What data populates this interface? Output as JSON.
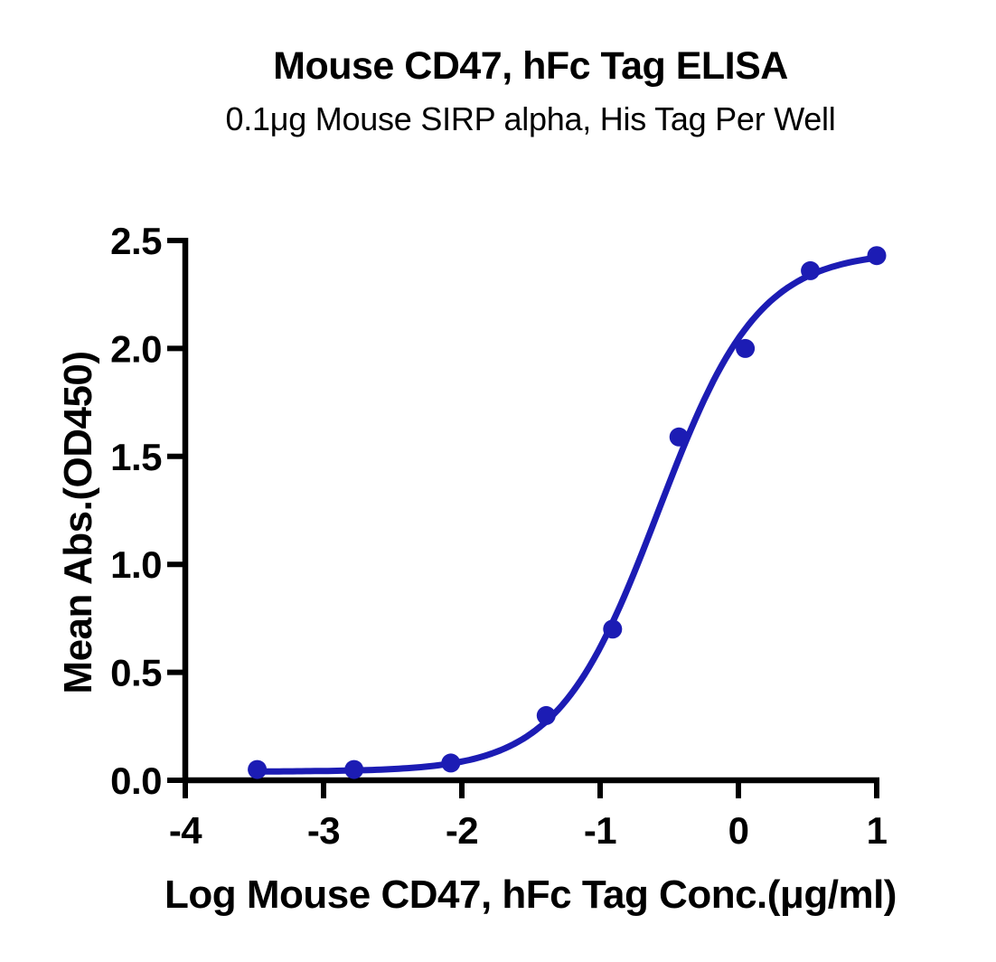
{
  "title": "Mouse CD47, hFc Tag ELISA",
  "subtitle": "0.1μg Mouse SIRP alpha, His Tag Per Well",
  "chart_data": {
    "type": "scatter",
    "title": "Mouse CD47, hFc Tag ELISA",
    "subtitle": "0.1μg Mouse SIRP alpha, His Tag Per Well",
    "xlabel": "Log Mouse CD47, hFc Tag Conc.(μg/ml)",
    "ylabel": "Mean Abs.(OD450)",
    "x": [
      -3.48,
      -2.78,
      -2.08,
      -1.39,
      -0.91,
      -0.43,
      0.05,
      0.52,
      1.0
    ],
    "y": [
      0.05,
      0.05,
      0.08,
      0.3,
      0.7,
      1.59,
      2.0,
      2.36,
      2.43
    ],
    "x_ticks": [
      -4,
      -3,
      -2,
      -1,
      0,
      1
    ],
    "x_tick_labels": [
      "-4",
      "-3",
      "-2",
      "-1",
      "0",
      "1"
    ],
    "y_ticks": [
      0.0,
      0.5,
      1.0,
      1.5,
      2.0,
      2.5
    ],
    "y_tick_labels": [
      "0.0",
      "0.5",
      "1.0",
      "1.5",
      "2.0",
      "2.5"
    ],
    "xlim": [
      -4,
      1
    ],
    "ylim": [
      0,
      2.5
    ],
    "grid": false,
    "legend": null,
    "marker": "circle",
    "curve": "4pl-sigmoid-fit",
    "fit_4pl": {
      "bottom": 0.04,
      "top": 2.45,
      "logec50": -0.58,
      "hill": 1.2
    },
    "series_color": "#1c1cb4",
    "axis_color": "#000000",
    "background_color": "#ffffff"
  }
}
